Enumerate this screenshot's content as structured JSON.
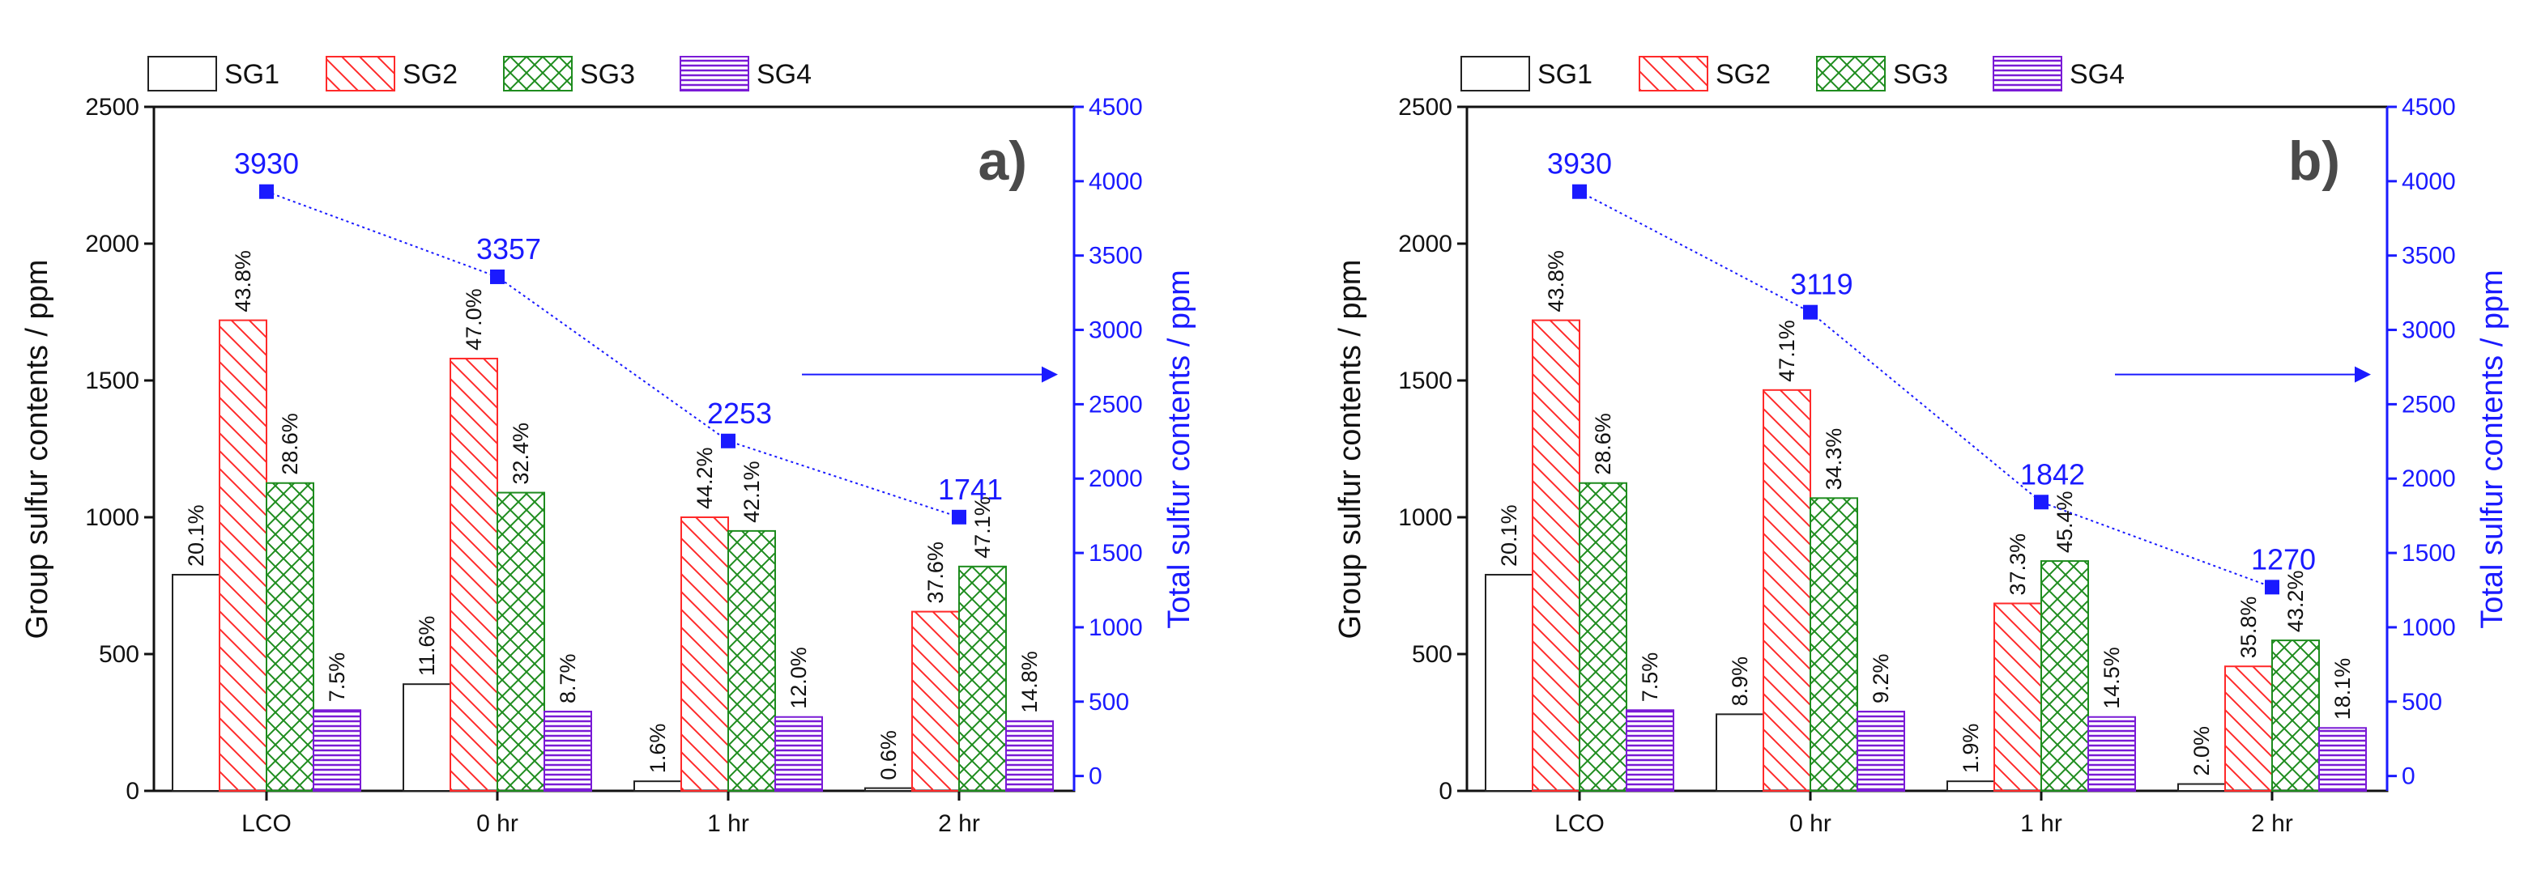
{
  "chart_data": [
    {
      "type": "bar",
      "panel_label": "a)",
      "categories": [
        "LCO",
        "0 hr",
        "1 hr",
        "2 hr"
      ],
      "ylabel": "Group sulfur contents / ppm",
      "ylim": [
        0,
        2500
      ],
      "yticks": [
        0,
        500,
        1000,
        1500,
        2000,
        2500
      ],
      "y2label": "Total sulfur contents / ppm",
      "y2lim": [
        -100,
        4500
      ],
      "y2ticks": [
        0,
        500,
        1000,
        1500,
        2000,
        2500,
        3000,
        3500,
        4000,
        4500
      ],
      "legend_position": "top-left",
      "series": [
        {
          "name": "SG1",
          "values": [
            790,
            390,
            35,
            10
          ],
          "labels": [
            "20.1%",
            "11.6%",
            "1.6%",
            "0.6%"
          ]
        },
        {
          "name": "SG2",
          "values": [
            1720,
            1580,
            1000,
            655
          ],
          "labels": [
            "43.8%",
            "47.0%",
            "44.2%",
            "37.6%"
          ]
        },
        {
          "name": "SG3",
          "values": [
            1125,
            1090,
            950,
            820
          ],
          "labels": [
            "28.6%",
            "32.4%",
            "42.1%",
            "47.1%"
          ]
        },
        {
          "name": "SG4",
          "values": [
            295,
            290,
            270,
            255
          ],
          "labels": [
            "7.5%",
            "8.7%",
            "12.0%",
            "14.8%"
          ]
        }
      ],
      "total_series": {
        "name": "Total",
        "values": [
          3930,
          3357,
          2253,
          1741
        ],
        "labels": [
          "3930",
          "3357",
          "2253",
          "1741"
        ]
      }
    },
    {
      "type": "bar",
      "panel_label": "b)",
      "categories": [
        "LCO",
        "0 hr",
        "1 hr",
        "2 hr"
      ],
      "ylabel": "Group sulfur contents / ppm",
      "ylim": [
        0,
        2500
      ],
      "yticks": [
        0,
        500,
        1000,
        1500,
        2000,
        2500
      ],
      "y2label": "Total sulfur contents / ppm",
      "y2lim": [
        -100,
        4500
      ],
      "y2ticks": [
        0,
        500,
        1000,
        1500,
        2000,
        2500,
        3000,
        3500,
        4000,
        4500
      ],
      "legend_position": "top-left",
      "series": [
        {
          "name": "SG1",
          "values": [
            790,
            280,
            35,
            25
          ],
          "labels": [
            "20.1%",
            "8.9%",
            "1.9%",
            "2.0%"
          ]
        },
        {
          "name": "SG2",
          "values": [
            1720,
            1465,
            685,
            455
          ],
          "labels": [
            "43.8%",
            "47.1%",
            "37.3%",
            "35.8%"
          ]
        },
        {
          "name": "SG3",
          "values": [
            1125,
            1070,
            840,
            550
          ],
          "labels": [
            "28.6%",
            "34.3%",
            "45.4%",
            "43.2%"
          ]
        },
        {
          "name": "SG4",
          "values": [
            295,
            290,
            270,
            230
          ],
          "labels": [
            "7.5%",
            "9.2%",
            "14.5%",
            "18.1%"
          ]
        }
      ],
      "total_series": {
        "name": "Total",
        "values": [
          3930,
          3119,
          1842,
          1270
        ],
        "labels": [
          "3930",
          "3119",
          "1842",
          "1270"
        ]
      }
    }
  ],
  "colors": {
    "SG1": "#222222",
    "SG2": "#ff2a2a",
    "SG3": "#1e8c1e",
    "SG4": "#7a1ad6",
    "total": "#1a1aff"
  }
}
